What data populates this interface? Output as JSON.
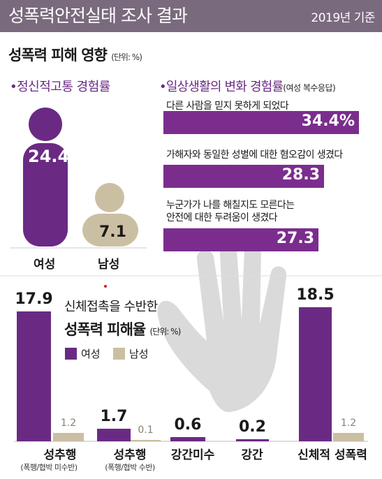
{
  "header": {
    "title": "성폭력안전실태 조사 결과",
    "basis": "2019년 기준"
  },
  "impact": {
    "title": "성폭력 피해 영향",
    "unit": "(단위: %)",
    "left_subtitle": "•정신적고통 경험률",
    "right_subtitle": "•일상생활의 변화 경험률",
    "right_subtitle_note": "(여성 복수응답)"
  },
  "colors": {
    "female": "#6a2a84",
    "male": "#cbbfa3",
    "accent_text": "#6a2a84",
    "header_bg": "#7a6a7e"
  },
  "chart_data": [
    {
      "type": "bar",
      "title": "•정신적고통 경험률",
      "categories": [
        "여성",
        "남성"
      ],
      "values": [
        24.4,
        7.1
      ],
      "value_labels": [
        "24.4%",
        "7.1"
      ],
      "unit": "%",
      "icon": "person-icon"
    },
    {
      "type": "bar",
      "orientation": "horizontal",
      "title": "•일상생활의 변화 경험률",
      "categories": [
        "다른 사람을 믿지 못하게 되었다",
        "가해자와 동일한 성별에 대한 혐오감이 생겼다",
        "누군가가 나를 해칠지도 모른다는 안전에 대한 두려움이 생겼다"
      ],
      "category_lines": [
        [
          "다른 사람을 믿지 못하게 되었다"
        ],
        [
          "가해자와 동일한 성별에 대한 혐오감이 생겼다"
        ],
        [
          "누군가가 나를 해칠지도 모른다는",
          "안전에 대한 두려움이 생겼다"
        ]
      ],
      "values": [
        34.4,
        28.3,
        27.3
      ],
      "value_labels": [
        "34.4%",
        "28.3",
        "27.3"
      ],
      "unit": "%"
    },
    {
      "type": "bar",
      "title_line1": "신체접촉을 수반한",
      "title_line2": "성폭력 피해율",
      "unit": "(단위: %)",
      "categories": [
        "성추행",
        "성추행",
        "강간미수",
        "강간",
        "신체적 성폭력"
      ],
      "category_notes": [
        "(폭행/협박 미수반)",
        "(폭행/협박 수반)",
        "",
        "",
        ""
      ],
      "legend": [
        "여성",
        "남성"
      ],
      "series": [
        {
          "name": "여성",
          "values": [
            17.9,
            1.7,
            0.6,
            0.2,
            18.5
          ]
        },
        {
          "name": "남성",
          "values": [
            1.2,
            0.1,
            null,
            null,
            1.2
          ]
        }
      ]
    }
  ]
}
